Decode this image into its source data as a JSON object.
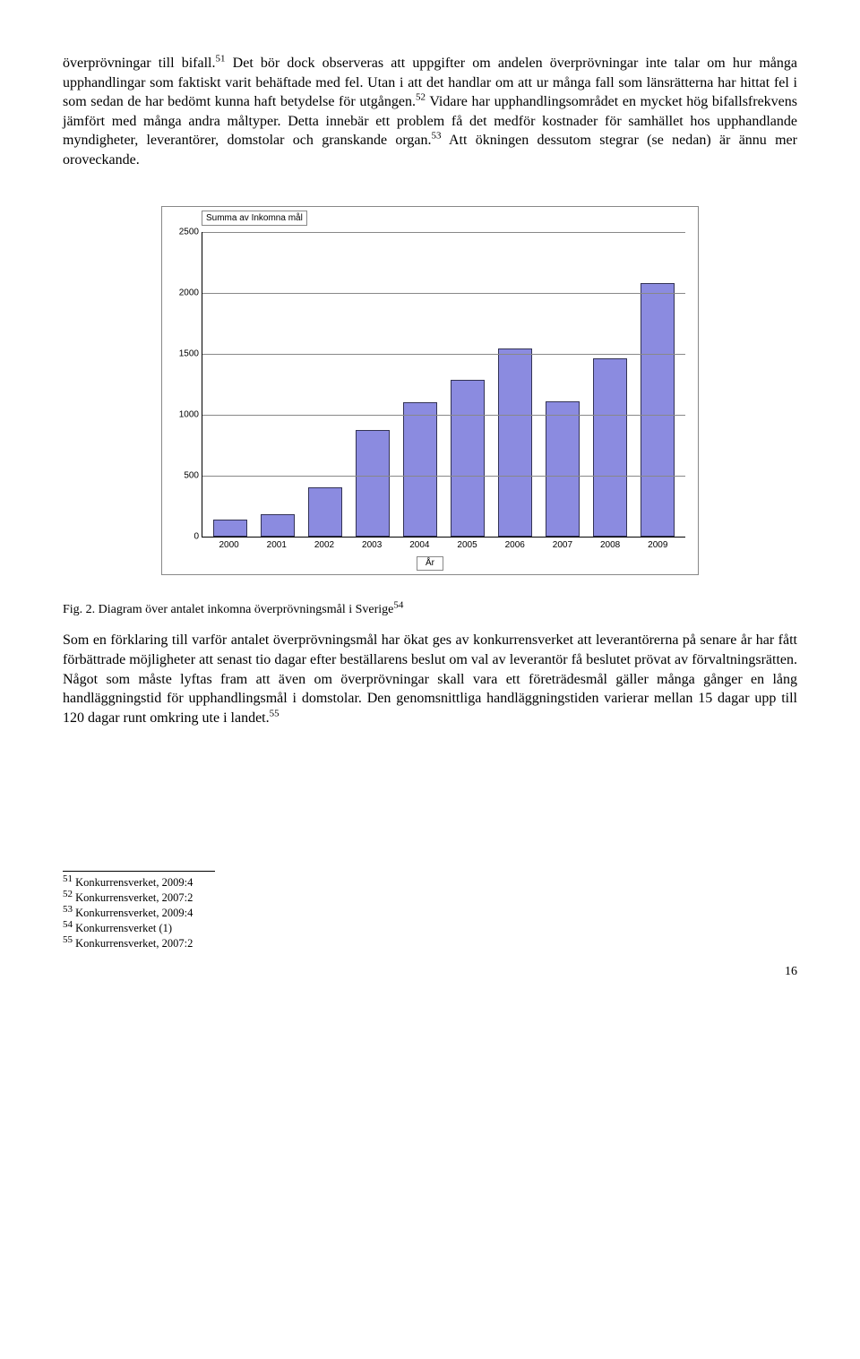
{
  "para1": {
    "t1": "överprövningar till bifall.",
    "s1": "51",
    "t2": " Det bör dock observeras att uppgifter om andelen överprövningar inte talar om hur många upphandlingar som faktiskt varit behäftade med fel. Utan i att det handlar om att ur många fall som länsrätterna har hittat fel i som sedan de har bedömt kunna haft betydelse för utgången.",
    "s2": "52",
    "t3": " Vidare har upphandlingsområdet en mycket hög bifallsfrekvens jämfört med många andra måltyper. Detta innebär ett problem få det medför kostnader för samhället hos upphandlande myndigheter, leverantörer, domstolar och granskande organ.",
    "s3": "53",
    "t4": " Att ökningen dessutom stegrar (se nedan) är ännu mer oroveckande."
  },
  "chart": {
    "legend": "Summa av Inkomna mål",
    "axis_x": "År",
    "ymax": 2500,
    "yticks": [
      0,
      500,
      1000,
      1500,
      2000,
      2500
    ],
    "categories": [
      "2000",
      "2001",
      "2002",
      "2003",
      "2004",
      "2005",
      "2006",
      "2007",
      "2008",
      "2009"
    ],
    "values": [
      140,
      180,
      400,
      870,
      1100,
      1280,
      1540,
      1110,
      1460,
      2080
    ],
    "bar_fill": "#8b8be0",
    "bar_border": "#333355",
    "grid_color": "#888888",
    "bg": "#ffffff"
  },
  "caption": {
    "prefix": "Fig. 2. Diagram över antalet inkomna överprövningsmål i Sverige",
    "sup": "54"
  },
  "para2": "Som en förklaring till varför antalet överprövningsmål har ökat ges av konkurrensverket att leverantörerna på senare år har fått förbättrade möjligheter att senast tio dagar efter beställarens beslut om val av leverantör få beslutet prövat av förvaltningsrätten. Något som måste lyftas fram att även om överprövningar skall vara ett företrädesmål gäller många gånger en lång handläggningstid för upphandlingsmål i domstolar. Den genomsnittliga handläggningstiden varierar mellan 15 dagar upp till 120 dagar runt omkring ute i landet.",
  "para2_sup": "55",
  "footnotes": {
    "f51": {
      "n": "51",
      "t": " Konkurrensverket, 2009:4"
    },
    "f52": {
      "n": "52",
      "t": " Konkurrensverket, 2007:2"
    },
    "f53": {
      "n": "53",
      "t": " Konkurrensverket, 2009:4"
    },
    "f54": {
      "n": "54",
      "t": " Konkurrensverket (1)"
    },
    "f55": {
      "n": "55",
      "t": " Konkurrensverket, 2007:2"
    }
  },
  "page": "16"
}
